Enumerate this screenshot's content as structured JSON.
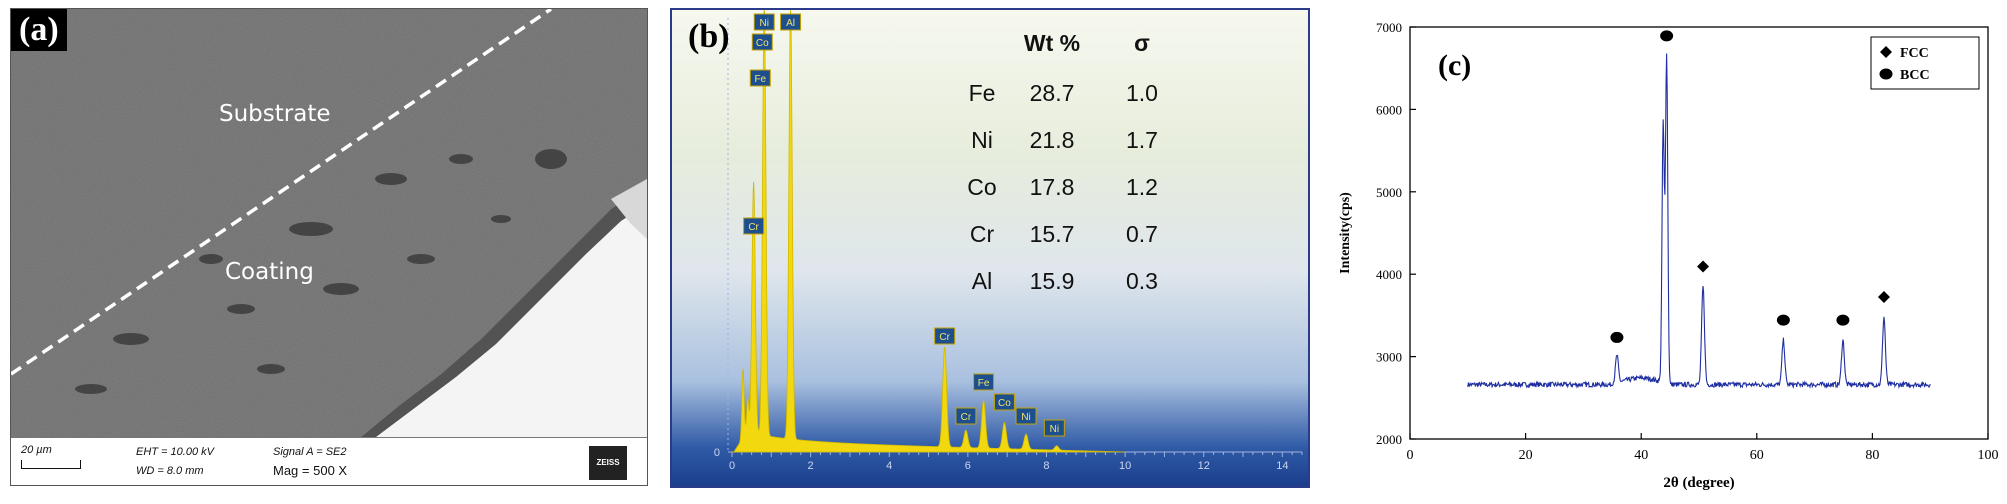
{
  "panel_a": {
    "tag": "(a)",
    "label_substrate": "Substrate",
    "label_coating": "Coating",
    "scale_bar": "20 µm",
    "eht": "EHT = 10.00 kV",
    "wd": "WD =  8.0 mm",
    "signal": "Signal A = SE2",
    "mag": "Mag =    500 X",
    "brand": "ZEISS"
  },
  "panel_b": {
    "tag": "(b)",
    "table_headers": [
      "Wt %",
      "σ"
    ],
    "table_rows": [
      {
        "element": "Fe",
        "wt": "28.7",
        "sigma": "1.0"
      },
      {
        "element": "Ni",
        "wt": "21.8",
        "sigma": "1.7"
      },
      {
        "element": "Co",
        "wt": "17.8",
        "sigma": "1.2"
      },
      {
        "element": "Cr",
        "wt": "15.7",
        "sigma": "0.7"
      },
      {
        "element": "Al",
        "wt": "15.9",
        "sigma": "0.3"
      }
    ],
    "x_ticks": [
      "0",
      "2",
      "4",
      "6",
      "8",
      "10",
      "12",
      "14"
    ],
    "y_tick": "0",
    "peak_labels": [
      "Ni",
      "Al",
      "Co",
      "Fe",
      "Cr",
      "Cr",
      "Fe",
      "Cr",
      "Co",
      "Ni",
      "Ni"
    ],
    "spectrum_color": "#f2d90f"
  },
  "chart_data": [
    {
      "type": "area",
      "title": "",
      "xlabel": "",
      "ylabel": "",
      "xlim": [
        0,
        14.5
      ],
      "x_ticks": [
        0,
        2,
        4,
        6,
        8,
        10,
        12,
        14
      ],
      "peaks": [
        {
          "element": "Cr/O",
          "x": 0.55,
          "height": 0.58
        },
        {
          "element": "Fe/Co/Ni L",
          "x": 0.82,
          "height": 1.0
        },
        {
          "element": "Al",
          "x": 1.49,
          "height": 1.0
        },
        {
          "element": "Cr",
          "x": 5.41,
          "height": 0.23
        },
        {
          "element": "Cr",
          "x": 5.95,
          "height": 0.04
        },
        {
          "element": "Fe",
          "x": 6.4,
          "height": 0.11
        },
        {
          "element": "Co",
          "x": 6.93,
          "height": 0.06
        },
        {
          "element": "Ni",
          "x": 7.48,
          "height": 0.035
        },
        {
          "element": "Ni",
          "x": 8.26,
          "height": 0.01
        }
      ]
    },
    {
      "type": "line",
      "title": "",
      "xlabel": "2θ (degree)",
      "ylabel": "Intensity(cps)",
      "xlim": [
        0,
        100
      ],
      "ylim": [
        2000,
        7000
      ],
      "x_ticks": [
        0,
        20,
        40,
        60,
        80,
        100
      ],
      "y_ticks": [
        2000,
        3000,
        4000,
        5000,
        6000,
        7000
      ],
      "legend": {
        "placement": "top-right",
        "entries": [
          {
            "marker": "diamond",
            "label": "FCC"
          },
          {
            "marker": "circle",
            "label": "BCC"
          }
        ]
      },
      "baseline": 2660,
      "peaks": [
        {
          "x": 35.8,
          "y": 2990,
          "phase": "BCC"
        },
        {
          "x": 43.8,
          "y": 5800,
          "phase": ""
        },
        {
          "x": 44.4,
          "y": 6650,
          "phase": "BCC"
        },
        {
          "x": 50.7,
          "y": 3850,
          "phase": "FCC"
        },
        {
          "x": 64.6,
          "y": 3200,
          "phase": "BCC"
        },
        {
          "x": 74.9,
          "y": 3200,
          "phase": "BCC"
        },
        {
          "x": 82.0,
          "y": 3480,
          "phase": "FCC"
        }
      ],
      "series_color": "#1f2fa0",
      "tag": "(c)"
    }
  ]
}
